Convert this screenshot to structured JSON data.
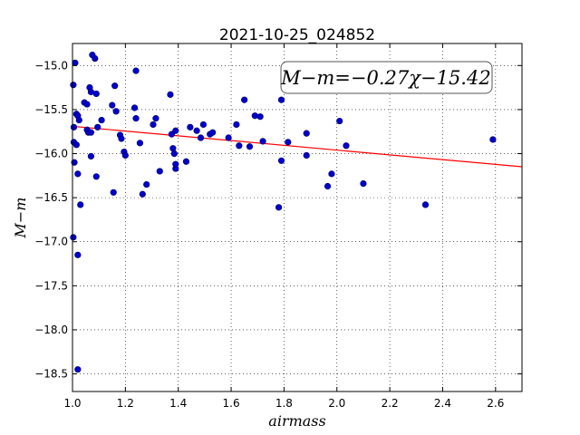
{
  "chart_data": {
    "type": "scatter",
    "title": "2021-10-25_024852",
    "xlabel": "airmass",
    "ylabel": "M−m",
    "xlim": [
      1.0,
      2.7
    ],
    "ylim": [
      -18.7,
      -14.75
    ],
    "y_inverted": true,
    "grid": true,
    "x_ticks": [
      1.0,
      1.2,
      1.4,
      1.6,
      1.8,
      2.0,
      2.2,
      2.4,
      2.6
    ],
    "x_tick_labels": [
      "1.0",
      "1.2",
      "1.4",
      "1.6",
      "1.8",
      "2.0",
      "2.2",
      "2.4",
      "2.6"
    ],
    "y_ticks": [
      -15.0,
      -15.5,
      -16.0,
      -16.5,
      -17.0,
      -17.5,
      -18.0,
      -18.5
    ],
    "y_tick_labels": [
      "−15.0",
      "−15.5",
      "−16.0",
      "−16.5",
      "−17.0",
      "−17.5",
      "−18.0",
      "−18.5"
    ],
    "annotation": "M−m=−0.27χ−15.42",
    "fit_line": {
      "slope": -0.27,
      "intercept": -15.42,
      "x_range": [
        1.0,
        2.7
      ],
      "color": "#ff0000"
    },
    "point_color": "#0000cc",
    "points": [
      {
        "x": 1.003,
        "y": -15.22
      },
      {
        "x": 1.005,
        "y": -15.7
      },
      {
        "x": 1.005,
        "y": -15.87
      },
      {
        "x": 1.007,
        "y": -16.1
      },
      {
        "x": 1.003,
        "y": -16.95
      },
      {
        "x": 1.01,
        "y": -14.97
      },
      {
        "x": 1.015,
        "y": -15.55
      },
      {
        "x": 1.015,
        "y": -15.9
      },
      {
        "x": 1.02,
        "y": -15.57
      },
      {
        "x": 1.025,
        "y": -15.62
      },
      {
        "x": 1.02,
        "y": -16.23
      },
      {
        "x": 1.02,
        "y": -17.15
      },
      {
        "x": 1.02,
        "y": -18.45
      },
      {
        "x": 1.03,
        "y": -16.58
      },
      {
        "x": 1.045,
        "y": -15.42
      },
      {
        "x": 1.055,
        "y": -15.44
      },
      {
        "x": 1.055,
        "y": -15.73
      },
      {
        "x": 1.06,
        "y": -15.76
      },
      {
        "x": 1.065,
        "y": -15.25
      },
      {
        "x": 1.07,
        "y": -15.3
      },
      {
        "x": 1.07,
        "y": -15.76
      },
      {
        "x": 1.07,
        "y": -16.03
      },
      {
        "x": 1.075,
        "y": -14.88
      },
      {
        "x": 1.085,
        "y": -14.92
      },
      {
        "x": 1.09,
        "y": -15.32
      },
      {
        "x": 1.09,
        "y": -16.26
      },
      {
        "x": 1.095,
        "y": -15.7
      },
      {
        "x": 1.11,
        "y": -15.62
      },
      {
        "x": 1.15,
        "y": -15.45
      },
      {
        "x": 1.155,
        "y": -16.44
      },
      {
        "x": 1.16,
        "y": -15.23
      },
      {
        "x": 1.165,
        "y": -15.52
      },
      {
        "x": 1.18,
        "y": -15.79
      },
      {
        "x": 1.185,
        "y": -15.83
      },
      {
        "x": 1.195,
        "y": -15.98
      },
      {
        "x": 1.2,
        "y": -16.02
      },
      {
        "x": 1.235,
        "y": -15.48
      },
      {
        "x": 1.24,
        "y": -15.06
      },
      {
        "x": 1.24,
        "y": -15.6
      },
      {
        "x": 1.255,
        "y": -15.88
      },
      {
        "x": 1.265,
        "y": -16.46
      },
      {
        "x": 1.28,
        "y": -16.35
      },
      {
        "x": 1.305,
        "y": -15.67
      },
      {
        "x": 1.315,
        "y": -15.6
      },
      {
        "x": 1.33,
        "y": -16.2
      },
      {
        "x": 1.37,
        "y": -15.33
      },
      {
        "x": 1.375,
        "y": -15.78
      },
      {
        "x": 1.38,
        "y": -15.94
      },
      {
        "x": 1.385,
        "y": -16.0
      },
      {
        "x": 1.39,
        "y": -15.74
      },
      {
        "x": 1.39,
        "y": -16.17
      },
      {
        "x": 1.39,
        "y": -16.12
      },
      {
        "x": 1.43,
        "y": -16.09
      },
      {
        "x": 1.445,
        "y": -15.7
      },
      {
        "x": 1.47,
        "y": -15.74
      },
      {
        "x": 1.485,
        "y": -15.82
      },
      {
        "x": 1.495,
        "y": -15.67
      },
      {
        "x": 1.52,
        "y": -15.78
      },
      {
        "x": 1.53,
        "y": -15.76
      },
      {
        "x": 1.59,
        "y": -15.82
      },
      {
        "x": 1.62,
        "y": -15.67
      },
      {
        "x": 1.63,
        "y": -15.91
      },
      {
        "x": 1.65,
        "y": -15.39
      },
      {
        "x": 1.67,
        "y": -15.92
      },
      {
        "x": 1.69,
        "y": -15.57
      },
      {
        "x": 1.71,
        "y": -15.58
      },
      {
        "x": 1.72,
        "y": -15.86
      },
      {
        "x": 1.78,
        "y": -16.61
      },
      {
        "x": 1.79,
        "y": -15.39
      },
      {
        "x": 1.79,
        "y": -16.08
      },
      {
        "x": 1.815,
        "y": -15.87
      },
      {
        "x": 1.885,
        "y": -15.77
      },
      {
        "x": 1.885,
        "y": -16.02
      },
      {
        "x": 1.965,
        "y": -16.37
      },
      {
        "x": 1.98,
        "y": -16.23
      },
      {
        "x": 2.01,
        "y": -15.63
      },
      {
        "x": 2.035,
        "y": -15.91
      },
      {
        "x": 2.1,
        "y": -16.34
      },
      {
        "x": 2.335,
        "y": -16.58
      },
      {
        "x": 2.59,
        "y": -15.84
      }
    ]
  }
}
